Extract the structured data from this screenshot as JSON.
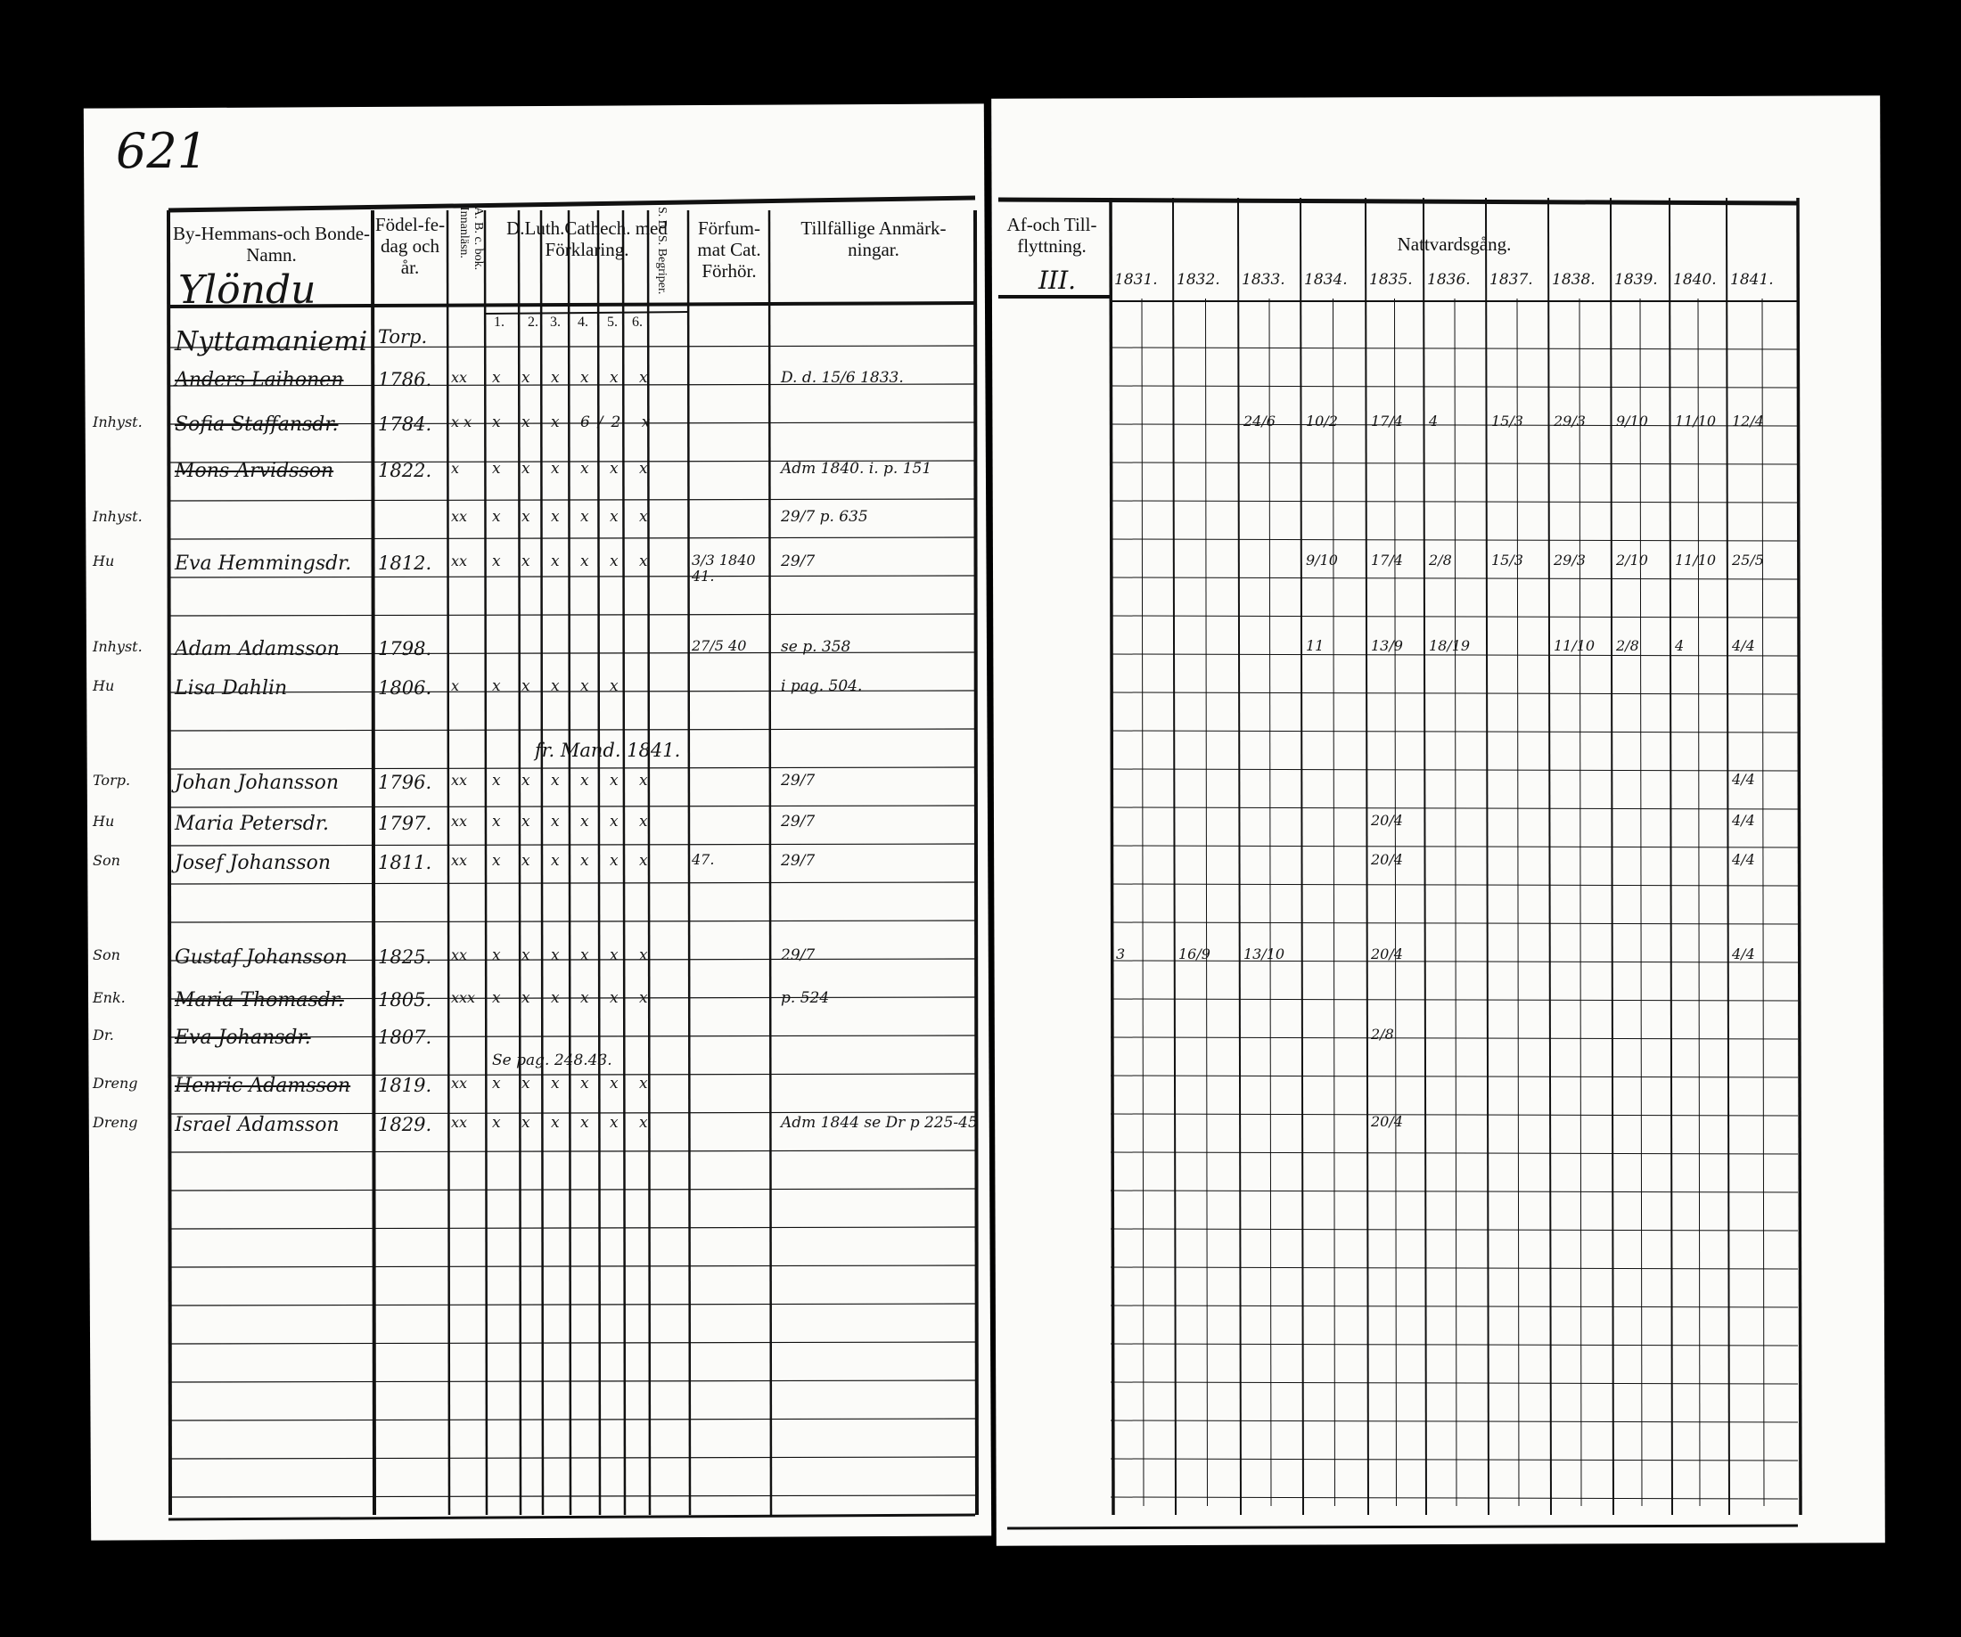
{
  "page_number": "621",
  "left_page": {
    "headers": {
      "name": "By-Hemmans-och Bonde-Namn.",
      "birth": "Födel-fe-dag och år.",
      "abc": "A. B. c. bok. Innanläsn.",
      "catech": "D.Luth.Cathech. med Förklaring.",
      "catech_sub": [
        "1.",
        "2.",
        "3.",
        "4.",
        "5.",
        "6."
      ],
      "sds": "S. D. S. Begriper.",
      "forfum": "Förfum-mat Cat. Förhör.",
      "remarks": "Tillfällige Anmärk-ningar."
    },
    "village": "Ylöndu",
    "rows": [
      {
        "margin": "",
        "name": "Nyttamaniemi",
        "birth": "Torp.",
        "abc": "",
        "marks": "",
        "forfum": "",
        "remark": "",
        "struck": false
      },
      {
        "margin": "",
        "name": "Anders Laihonen",
        "birth": "1786.",
        "abc": "xx",
        "marks": "x x x x x x",
        "forfum": "",
        "remark": "D. d. 15/6 1833.",
        "struck": true
      },
      {
        "margin": "Inhyst.",
        "name": "Sofia Staffansdr.",
        "birth": "1784.",
        "abc": "x x",
        "marks": "x x x 6/2 x",
        "forfum": "",
        "remark": "",
        "struck": true
      },
      {
        "margin": "",
        "name": "Mons Arvidsson",
        "birth": "1822.",
        "abc": "x",
        "marks": "x x x x x x",
        "forfum": "",
        "remark": "Adm 1840. i. p. 151",
        "struck": true
      },
      {
        "margin": "Inhyst.",
        "name": "",
        "birth": "",
        "abc": "xx",
        "marks": "x x x x x x",
        "forfum": "",
        "remark": "29/7 p. 635",
        "struck": false
      },
      {
        "margin": "Hu",
        "name": "Eva Hemmingsdr.",
        "birth": "1812.",
        "abc": "xx",
        "marks": "x x x x x x",
        "forfum": "3/3 1840 41.",
        "remark": "29/7",
        "struck": false
      },
      {
        "margin": "Inhyst.",
        "name": "Adam Adamsson",
        "birth": "1798.",
        "abc": "",
        "marks": "",
        "forfum": "27/5 40",
        "remark": "se p. 358",
        "struck": false
      },
      {
        "margin": "Hu",
        "name": "Lisa Dahlin",
        "birth": "1806.",
        "abc": "x",
        "marks": "x x x x x",
        "forfum": "",
        "remark": "i pag. 504.",
        "struck": false
      },
      {
        "margin": "Torp.",
        "name": "Johan Johansson",
        "birth": "1796.",
        "abc": "xx",
        "marks": "x x x x x x",
        "forfum": "",
        "remark": "29/7",
        "struck": false
      },
      {
        "margin": "Hu",
        "name": "Maria Petersdr.",
        "birth": "1797.",
        "abc": "xx",
        "marks": "x x x x x x",
        "forfum": "",
        "remark": "29/7",
        "struck": false
      },
      {
        "margin": "Son",
        "name": "Josef Johansson",
        "birth": "1811.",
        "abc": "xx",
        "marks": "x x x x x x",
        "forfum": "47.",
        "remark": "29/7",
        "struck": false
      },
      {
        "margin": "Son",
        "name": "Gustaf Johansson",
        "birth": "1825.",
        "abc": "xx",
        "marks": "x x x x x x",
        "forfum": "",
        "remark": "29/7",
        "struck": false
      },
      {
        "margin": "Enk.",
        "name": "Maria Thomasdr.",
        "birth": "1805.",
        "abc": "xxx",
        "marks": "x x x x x x",
        "forfum": "",
        "remark": "p. 524",
        "struck": true
      },
      {
        "margin": "Dr.",
        "name": "Eva Johansdr.",
        "birth": "1807.",
        "abc": "",
        "marks": "",
        "forfum": "",
        "remark": "",
        "struck": true
      },
      {
        "margin": "Dreng",
        "name": "Henric Adamsson",
        "birth": "1819.",
        "abc": "xx",
        "marks": "x x x x x x",
        "forfum": "",
        "remark": "",
        "struck": true
      },
      {
        "margin": "Dreng",
        "name": "Israel Adamsson",
        "birth": "1829.",
        "abc": "xx",
        "marks": "x x x x x x",
        "forfum": "",
        "remark": "Adm 1844 se Dr p 225-45",
        "struck": false
      }
    ],
    "notes": [
      "Se pag. 248.43.",
      "fr. Mand. 1841."
    ]
  },
  "right_page": {
    "headers": {
      "moves": "Af-och Till-flyttning.",
      "communion": "Nattvardsgång."
    },
    "moves_mark": "III.",
    "years": [
      "1831.",
      "1832.",
      "1833.",
      "1834.",
      "1835.",
      "1836.",
      "1837.",
      "1838.",
      "1839.",
      "1840.",
      "1841."
    ],
    "entries": [
      {
        "row": 2,
        "values": [
          "",
          "",
          "24/6",
          "10/2",
          "17/4",
          "4",
          "15/3",
          "29/3",
          "9/10",
          "11/10",
          "12/4"
        ]
      },
      {
        "row": 5,
        "values": [
          "",
          "",
          "",
          "9/10",
          "17/4",
          "2/8",
          "15/3",
          "29/3",
          "2/10",
          "11/10",
          "25/5"
        ]
      },
      {
        "row": 6,
        "values": [
          "",
          "",
          "",
          "11",
          "13/9",
          "18/19",
          "",
          "11/10",
          "2/8",
          "4",
          "4/4"
        ]
      },
      {
        "row": 8,
        "values": [
          "",
          "",
          "",
          "",
          "",
          "",
          "",
          "",
          "",
          "",
          "4/4"
        ]
      },
      {
        "row": 9,
        "values": [
          "",
          "",
          "",
          "",
          "20/4",
          "",
          "",
          "",
          "",
          "",
          "4/4"
        ]
      },
      {
        "row": 10,
        "values": [
          "",
          "",
          "",
          "",
          "20/4",
          "",
          "",
          "",
          "",
          "",
          "4/4"
        ]
      },
      {
        "row": 11,
        "values": [
          "3",
          "16/9",
          "13/10",
          "",
          "20/4",
          "",
          "",
          "",
          "",
          "",
          "4/4"
        ]
      },
      {
        "row": 13,
        "values": [
          "",
          "",
          "",
          "",
          "2/8",
          "",
          "",
          "",
          "",
          "",
          ""
        ]
      },
      {
        "row": 15,
        "values": [
          "",
          "",
          "",
          "",
          "20/4",
          "",
          "",
          "",
          "",
          "",
          ""
        ]
      }
    ]
  }
}
